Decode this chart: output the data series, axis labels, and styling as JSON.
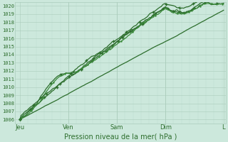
{
  "xlabel": "Pression niveau de la mer( hPa )",
  "bg_color": "#cce8dc",
  "plot_bg_color": "#cce8dc",
  "grid_major_color": "#aaccbb",
  "grid_minor_color": "#bbddd0",
  "line_color_dark": "#2d6e2d",
  "line_color_mid": "#3a8a3a",
  "ylim_lo": 1005.5,
  "ylim_hi": 1020.5,
  "yticks": [
    1006,
    1007,
    1008,
    1009,
    1010,
    1011,
    1012,
    1013,
    1014,
    1015,
    1016,
    1017,
    1018,
    1019,
    1020
  ],
  "day_labels": [
    "Jeu",
    "Ven",
    "Sam",
    "Dim",
    "L"
  ],
  "xlabel_fontsize": 7,
  "ylabel_fontsize": 5,
  "xtick_fontsize": 6,
  "num_points": 200
}
